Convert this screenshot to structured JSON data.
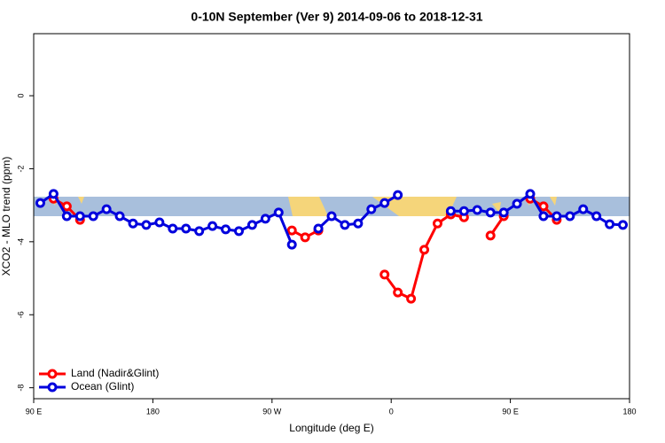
{
  "chart_data": {
    "type": "line",
    "title": "0-10N September (Ver 9)   2014-09-06 to 2018-12-31",
    "xlabel": "Longitude (deg E)",
    "ylabel": "XCO2 - MLO trend (ppm)",
    "xlim": [
      90,
      540
    ],
    "ylim": [
      -8.3,
      1.7
    ],
    "xticks": [
      {
        "value": 90,
        "label": "90 E"
      },
      180,
      {
        "value": 270,
        "label": "90 W"
      },
      {
        "value": 360,
        "label": "0"
      },
      {
        "value": 450,
        "label": "90 E"
      },
      {
        "value": 540,
        "label": "180"
      }
    ],
    "yticks": [
      0,
      -2,
      -4,
      -6,
      -8
    ],
    "legend": "bottom-left",
    "series": [
      {
        "name": "Land (Nadir&Glint)",
        "color": "#ff0000",
        "x": [
          105,
          115,
          125,
          null,
          285,
          295,
          305,
          null,
          355,
          365,
          375,
          385,
          395,
          405,
          415,
          null,
          435,
          445,
          null,
          465,
          475,
          485
        ],
        "values": [
          -2.82,
          -3.03,
          -3.4,
          null,
          -3.69,
          -3.88,
          -3.69,
          null,
          -4.9,
          -5.39,
          -5.56,
          -4.22,
          -3.5,
          -3.25,
          -3.33,
          null,
          -3.83,
          -3.3,
          null,
          -2.82,
          -3.03,
          -3.4
        ]
      },
      {
        "name": "Ocean (Glint)",
        "color": "#0000dd",
        "x": [
          95,
          105,
          115,
          125,
          135,
          145,
          155,
          165,
          175,
          185,
          195,
          205,
          215,
          225,
          235,
          245,
          255,
          265,
          275,
          285,
          null,
          305,
          315,
          325,
          335,
          345,
          355,
          365,
          null,
          405,
          415,
          425,
          435,
          445,
          455,
          465,
          475,
          485,
          495,
          505,
          515,
          525,
          535
        ],
        "values": [
          -2.94,
          -2.69,
          -3.3,
          -3.3,
          -3.3,
          -3.11,
          -3.3,
          -3.5,
          -3.54,
          -3.47,
          -3.64,
          -3.64,
          -3.71,
          -3.57,
          -3.66,
          -3.71,
          -3.54,
          -3.37,
          -3.2,
          -4.08,
          null,
          -3.64,
          -3.3,
          -3.54,
          -3.5,
          -3.11,
          -2.94,
          -2.72,
          null,
          -3.16,
          -3.16,
          -3.13,
          -3.2,
          -3.2,
          -2.96,
          -2.69,
          -3.3,
          -3.3,
          -3.3,
          -3.11,
          -3.3,
          -3.52,
          -3.54
        ]
      }
    ]
  }
}
